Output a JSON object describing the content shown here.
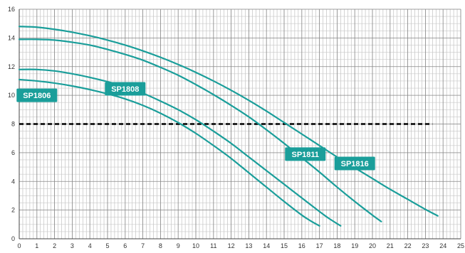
{
  "chart_data": {
    "type": "line",
    "title": "",
    "xlabel": "",
    "ylabel": "",
    "xlim": [
      0,
      25
    ],
    "ylim": [
      0,
      16
    ],
    "x_ticks": [
      0,
      1,
      2,
      3,
      4,
      5,
      6,
      7,
      8,
      9,
      10,
      11,
      12,
      13,
      14,
      15,
      16,
      17,
      18,
      19,
      20,
      21,
      22,
      23,
      24,
      25
    ],
    "y_ticks": [
      0,
      2,
      4,
      6,
      8,
      10,
      12,
      14,
      16
    ],
    "x_minor_step": 0.2,
    "y_minor_step": 0.5,
    "grid": true,
    "line_color": "#1a9e9a",
    "reference_line": {
      "y": 8,
      "x_from": 0,
      "x_to": 23.4,
      "style": "dashed",
      "color": "#000000"
    },
    "series": [
      {
        "name": "SP1806",
        "x": [
          0,
          1,
          2,
          3,
          4,
          5,
          6,
          7,
          8,
          9,
          10,
          11,
          12,
          13,
          14,
          15,
          16,
          16.5,
          17
        ],
        "y": [
          11.1,
          11.0,
          10.85,
          10.65,
          10.4,
          10.1,
          9.75,
          9.3,
          8.75,
          8.1,
          7.35,
          6.5,
          5.6,
          4.6,
          3.6,
          2.6,
          1.65,
          1.25,
          0.9
        ]
      },
      {
        "name": "SP1808",
        "x": [
          0,
          1,
          2,
          3,
          4,
          5,
          6,
          7,
          8,
          9,
          10,
          11,
          12,
          13,
          14,
          15,
          16,
          17,
          17.5,
          18.2
        ],
        "y": [
          11.8,
          11.8,
          11.7,
          11.5,
          11.25,
          10.95,
          10.6,
          10.15,
          9.6,
          9.0,
          8.3,
          7.5,
          6.65,
          5.7,
          4.75,
          3.8,
          2.85,
          1.9,
          1.45,
          0.9
        ]
      },
      {
        "name": "SP1811",
        "x": [
          0,
          1,
          2,
          3,
          4,
          5,
          6,
          7,
          8,
          9,
          10,
          11,
          12,
          13,
          14,
          15,
          16,
          17,
          18,
          19,
          20,
          20.5
        ],
        "y": [
          13.9,
          13.9,
          13.85,
          13.7,
          13.5,
          13.2,
          12.85,
          12.45,
          11.95,
          11.4,
          10.75,
          10.05,
          9.3,
          8.5,
          7.6,
          6.65,
          5.65,
          4.65,
          3.6,
          2.6,
          1.65,
          1.2
        ]
      },
      {
        "name": "SP1816",
        "x": [
          0,
          1,
          2,
          3,
          4,
          5,
          6,
          7,
          8,
          9,
          10,
          11,
          12,
          13,
          14,
          15,
          16,
          17,
          18,
          19,
          20,
          21,
          22,
          23,
          23.7
        ],
        "y": [
          14.8,
          14.75,
          14.6,
          14.4,
          14.15,
          13.85,
          13.5,
          13.1,
          12.65,
          12.15,
          11.6,
          11.0,
          10.35,
          9.65,
          8.9,
          8.1,
          7.3,
          6.5,
          5.7,
          4.95,
          4.2,
          3.45,
          2.75,
          2.05,
          1.6
        ]
      }
    ],
    "annotations": [
      {
        "text": "SP1806",
        "x": 1.0,
        "y": 10.0
      },
      {
        "text": "SP1808",
        "x": 6.0,
        "y": 10.45
      },
      {
        "text": "SP1811",
        "x": 16.2,
        "y": 5.9
      },
      {
        "text": "SP1816",
        "x": 19.0,
        "y": 5.25
      }
    ]
  }
}
